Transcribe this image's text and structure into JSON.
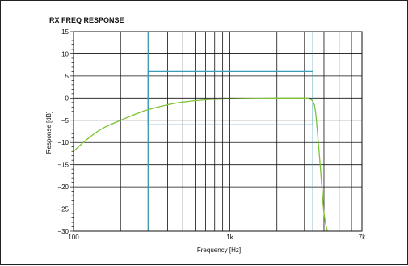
{
  "chart_data": {
    "type": "line",
    "title": "RX FREQ RESPONSE",
    "xlabel": "Frequency [Hz]",
    "ylabel": "Response [dB]",
    "x_scale": "log",
    "xlim": [
      100,
      7000
    ],
    "ylim": [
      -30,
      15
    ],
    "x_tick_labels": [
      {
        "value": 100,
        "label": "100"
      },
      {
        "value": 1000,
        "label": "1k"
      },
      {
        "value": 7000,
        "label": "7k"
      }
    ],
    "y_ticks": [
      15,
      10,
      5,
      0,
      -5,
      -10,
      -15,
      -20,
      -25,
      -30
    ],
    "y_tick_labels": [
      "15",
      "10",
      "5",
      "0",
      "−5",
      "−10",
      "−15",
      "−20",
      "−25",
      "−30"
    ],
    "x_gridlines": [
      200,
      300,
      400,
      500,
      600,
      700,
      800,
      900,
      1000,
      2000,
      3000,
      4000,
      5000,
      6000,
      7000
    ],
    "y_gridlines": [
      15,
      10,
      5,
      0,
      -5,
      -10,
      -15,
      -20,
      -25,
      -30
    ],
    "grid": true,
    "colors": {
      "response": "#7cc233",
      "mask": "#3a9cb8",
      "grid": "#111111",
      "axis": "#111111"
    },
    "series": [
      {
        "type": "line",
        "x": [
          100,
          120,
          150,
          200,
          250,
          300,
          400,
          500,
          700,
          1000,
          1500,
          2000,
          2500,
          3000,
          3200,
          3400,
          3500,
          3600,
          3800,
          4000,
          4200
        ],
        "y": [
          -12,
          -9.5,
          -7,
          -5,
          -3.6,
          -2.6,
          -1.5,
          -0.9,
          -0.4,
          -0.15,
          -0.05,
          0,
          0,
          0,
          -0.1,
          -0.8,
          -2.2,
          -6,
          -16,
          -26,
          -30
        ]
      }
    ],
    "mask_upper": {
      "x": [
        300,
        300,
        3400,
        3400
      ],
      "y": [
        -30,
        6,
        6,
        -30
      ]
    },
    "mask_lower": {
      "x": [
        300,
        300,
        3400,
        3400
      ],
      "y": [
        15,
        -6,
        -6,
        15
      ]
    }
  }
}
